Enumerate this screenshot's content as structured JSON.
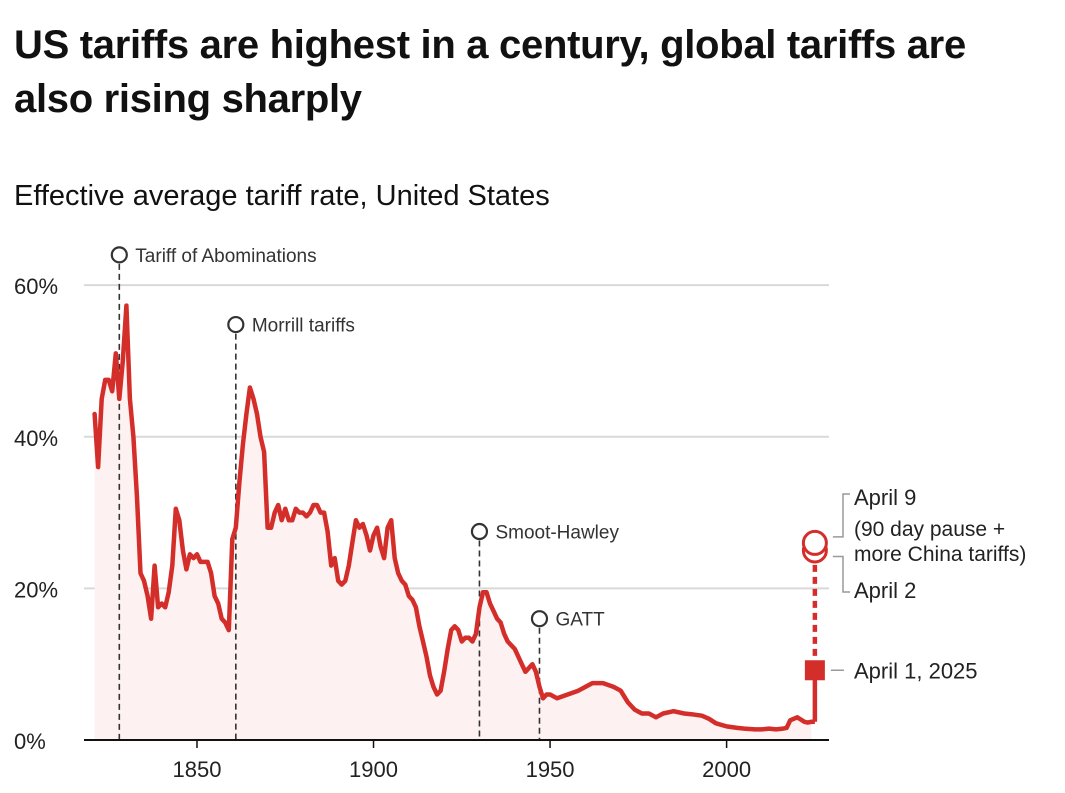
{
  "title": "US tariffs are highest in a century, global tariffs are also rising sharply",
  "colors": {
    "line": "#d42e2a",
    "fill": "#fdf1f1",
    "grid": "#d9d9d9",
    "text": "#222222",
    "annotation": "#333333"
  },
  "chart_data": {
    "type": "line",
    "title": "Effective average tariff rate, United States",
    "xlabel": "",
    "ylabel": "",
    "xlim": [
      1818,
      2029
    ],
    "ylim": [
      0,
      62
    ],
    "x_ticks": [
      {
        "value": 1850,
        "label": "1850"
      },
      {
        "value": 1900,
        "label": "1900"
      },
      {
        "value": 1950,
        "label": "1950"
      },
      {
        "value": 2000,
        "label": "2000"
      }
    ],
    "y_ticks": [
      {
        "value": 0,
        "label": "0%"
      },
      {
        "value": 20,
        "label": "20%"
      },
      {
        "value": 40,
        "label": "40%"
      },
      {
        "value": 60,
        "label": "60%"
      }
    ],
    "series": [
      {
        "name": "Effective average tariff rate",
        "points": [
          [
            1821,
            43
          ],
          [
            1822,
            36
          ],
          [
            1823,
            45
          ],
          [
            1824,
            47.5
          ],
          [
            1825,
            47.5
          ],
          [
            1826,
            46
          ],
          [
            1827,
            51
          ],
          [
            1828,
            45
          ],
          [
            1829,
            50
          ],
          [
            1830,
            57.3
          ],
          [
            1831,
            45
          ],
          [
            1832,
            40
          ],
          [
            1833,
            32
          ],
          [
            1834,
            22
          ],
          [
            1835,
            21
          ],
          [
            1836,
            19
          ],
          [
            1837,
            16
          ],
          [
            1838,
            23
          ],
          [
            1839,
            17.5
          ],
          [
            1840,
            18
          ],
          [
            1841,
            17.5
          ],
          [
            1842,
            19.5
          ],
          [
            1843,
            23
          ],
          [
            1844,
            30.5
          ],
          [
            1845,
            29
          ],
          [
            1846,
            25
          ],
          [
            1847,
            22.5
          ],
          [
            1848,
            24.5
          ],
          [
            1849,
            24
          ],
          [
            1850,
            24.5
          ],
          [
            1851,
            23.5
          ],
          [
            1852,
            23.5
          ],
          [
            1853,
            23.5
          ],
          [
            1854,
            22
          ],
          [
            1855,
            19
          ],
          [
            1856,
            18
          ],
          [
            1857,
            16
          ],
          [
            1858,
            15.5
          ],
          [
            1859,
            14.5
          ],
          [
            1860,
            26.5
          ],
          [
            1861,
            28
          ],
          [
            1862,
            34
          ],
          [
            1863,
            39
          ],
          [
            1864,
            43
          ],
          [
            1865,
            46.5
          ],
          [
            1866,
            45
          ],
          [
            1867,
            43
          ],
          [
            1868,
            40
          ],
          [
            1869,
            38
          ],
          [
            1870,
            28
          ],
          [
            1871,
            28
          ],
          [
            1872,
            30
          ],
          [
            1873,
            31
          ],
          [
            1874,
            29
          ],
          [
            1875,
            30.5
          ],
          [
            1876,
            29
          ],
          [
            1877,
            29
          ],
          [
            1878,
            30.5
          ],
          [
            1879,
            30
          ],
          [
            1880,
            30
          ],
          [
            1881,
            29.5
          ],
          [
            1882,
            30
          ],
          [
            1883,
            31
          ],
          [
            1884,
            31
          ],
          [
            1885,
            30
          ],
          [
            1886,
            30
          ],
          [
            1887,
            27.5
          ],
          [
            1888,
            23
          ],
          [
            1889,
            24
          ],
          [
            1890,
            21
          ],
          [
            1891,
            20.5
          ],
          [
            1892,
            21
          ],
          [
            1893,
            23
          ],
          [
            1894,
            26
          ],
          [
            1895,
            29
          ],
          [
            1896,
            28
          ],
          [
            1897,
            28.5
          ],
          [
            1898,
            27
          ],
          [
            1899,
            25
          ],
          [
            1900,
            27
          ],
          [
            1901,
            28
          ],
          [
            1902,
            25.5
          ],
          [
            1903,
            24
          ],
          [
            1904,
            28
          ],
          [
            1905,
            29
          ],
          [
            1906,
            24
          ],
          [
            1907,
            22
          ],
          [
            1908,
            21
          ],
          [
            1909,
            20.5
          ],
          [
            1910,
            19
          ],
          [
            1911,
            18.5
          ],
          [
            1912,
            17.5
          ],
          [
            1913,
            15
          ],
          [
            1914,
            13
          ],
          [
            1915,
            11
          ],
          [
            1916,
            8.5
          ],
          [
            1917,
            7
          ],
          [
            1918,
            6
          ],
          [
            1919,
            6.5
          ],
          [
            1920,
            9
          ],
          [
            1921,
            12
          ],
          [
            1922,
            14.5
          ],
          [
            1923,
            15
          ],
          [
            1924,
            14.5
          ],
          [
            1925,
            13
          ],
          [
            1926,
            13.5
          ],
          [
            1927,
            13.5
          ],
          [
            1928,
            13
          ],
          [
            1929,
            14
          ],
          [
            1930,
            17.5
          ],
          [
            1931,
            19.5
          ],
          [
            1932,
            19.5
          ],
          [
            1933,
            18
          ],
          [
            1934,
            17
          ],
          [
            1935,
            16
          ],
          [
            1936,
            15.5
          ],
          [
            1937,
            14
          ],
          [
            1938,
            13
          ],
          [
            1939,
            12.5
          ],
          [
            1940,
            12
          ],
          [
            1941,
            11
          ],
          [
            1942,
            10
          ],
          [
            1943,
            9
          ],
          [
            1944,
            9.5
          ],
          [
            1945,
            10
          ],
          [
            1946,
            9
          ],
          [
            1947,
            7
          ],
          [
            1948,
            5.5
          ],
          [
            1949,
            6
          ],
          [
            1950,
            6
          ],
          [
            1952,
            5.5
          ],
          [
            1955,
            6
          ],
          [
            1958,
            6.5
          ],
          [
            1960,
            7
          ],
          [
            1962,
            7.5
          ],
          [
            1965,
            7.5
          ],
          [
            1968,
            7
          ],
          [
            1970,
            6.5
          ],
          [
            1972,
            5
          ],
          [
            1974,
            4
          ],
          [
            1976,
            3.5
          ],
          [
            1978,
            3.5
          ],
          [
            1980,
            3
          ],
          [
            1982,
            3.5
          ],
          [
            1985,
            3.8
          ],
          [
            1988,
            3.5
          ],
          [
            1990,
            3.4
          ],
          [
            1993,
            3.2
          ],
          [
            1995,
            2.8
          ],
          [
            1997,
            2.2
          ],
          [
            2000,
            1.8
          ],
          [
            2003,
            1.6
          ],
          [
            2005,
            1.5
          ],
          [
            2008,
            1.4
          ],
          [
            2010,
            1.4
          ],
          [
            2012,
            1.5
          ],
          [
            2014,
            1.4
          ],
          [
            2016,
            1.5
          ],
          [
            2017,
            1.6
          ],
          [
            2018,
            2.6
          ],
          [
            2019,
            2.8
          ],
          [
            2020,
            3
          ],
          [
            2021,
            2.7
          ],
          [
            2022,
            2.4
          ],
          [
            2023,
            2.3
          ],
          [
            2024,
            2.4
          ]
        ]
      }
    ],
    "projections": [
      {
        "label": "April 1, 2025",
        "value": 9.2,
        "marker": "square"
      },
      {
        "label": "April 2",
        "value": 25,
        "marker": "circle"
      },
      {
        "label": "April 9",
        "note": "(90 day pause + more China tariffs)",
        "note_lines": [
          "(90 day pause +",
          "more China tariffs)"
        ],
        "value": 26,
        "marker": "circle"
      }
    ],
    "annotations": [
      {
        "year": 1828,
        "label": "Tariff of Abominations",
        "marker_value": 64
      },
      {
        "year": 1861,
        "label": "Morrill tariffs",
        "marker_value": 54.8
      },
      {
        "year": 1930,
        "label": "Smoot-Hawley",
        "marker_value": 27.5
      },
      {
        "year": 1947,
        "label": "GATT",
        "marker_value": 16
      }
    ]
  }
}
